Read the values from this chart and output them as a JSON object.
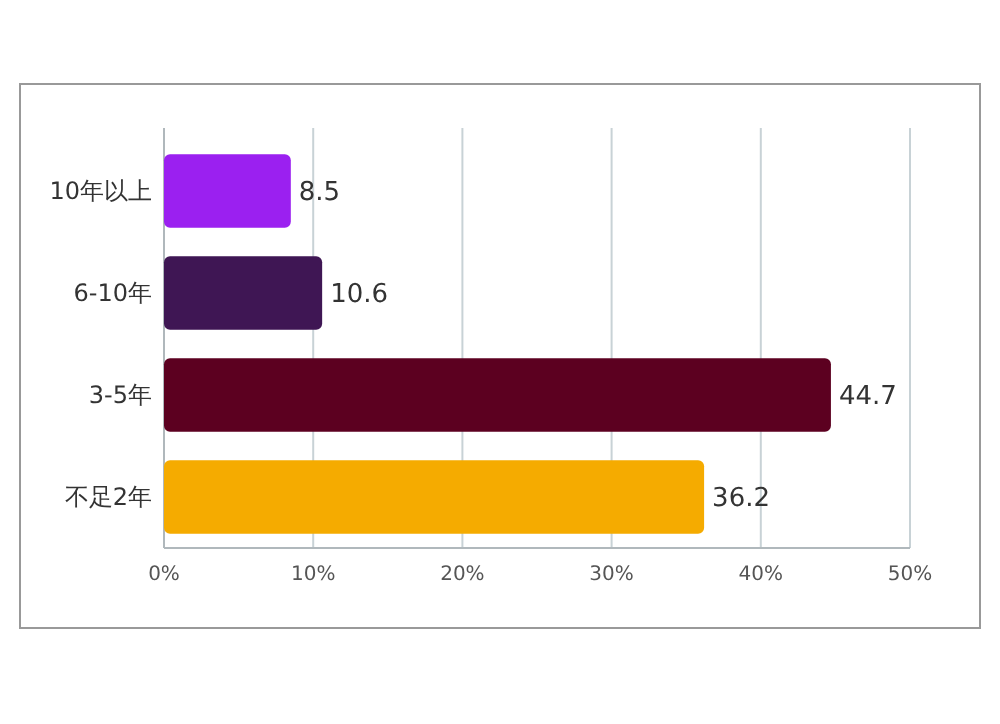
{
  "chart_data": {
    "type": "bar",
    "orientation": "horizontal",
    "categories": [
      "10年以上",
      "6-10年",
      "3-5年",
      "不足2年"
    ],
    "values": [
      8.5,
      10.6,
      44.7,
      36.2
    ],
    "colors": [
      "#9b20f0",
      "#3f1654",
      "#5c0020",
      "#f5ab00"
    ],
    "xlim": [
      0,
      50
    ],
    "xticks": [
      {
        "value": 0,
        "label": "0%"
      },
      {
        "value": 10,
        "label": "10%"
      },
      {
        "value": 20,
        "label": "20%"
      },
      {
        "value": 30,
        "label": "30%"
      },
      {
        "value": 40,
        "label": "40%"
      },
      {
        "value": 50,
        "label": "50%"
      }
    ],
    "data_labels": true,
    "grid": "x"
  }
}
